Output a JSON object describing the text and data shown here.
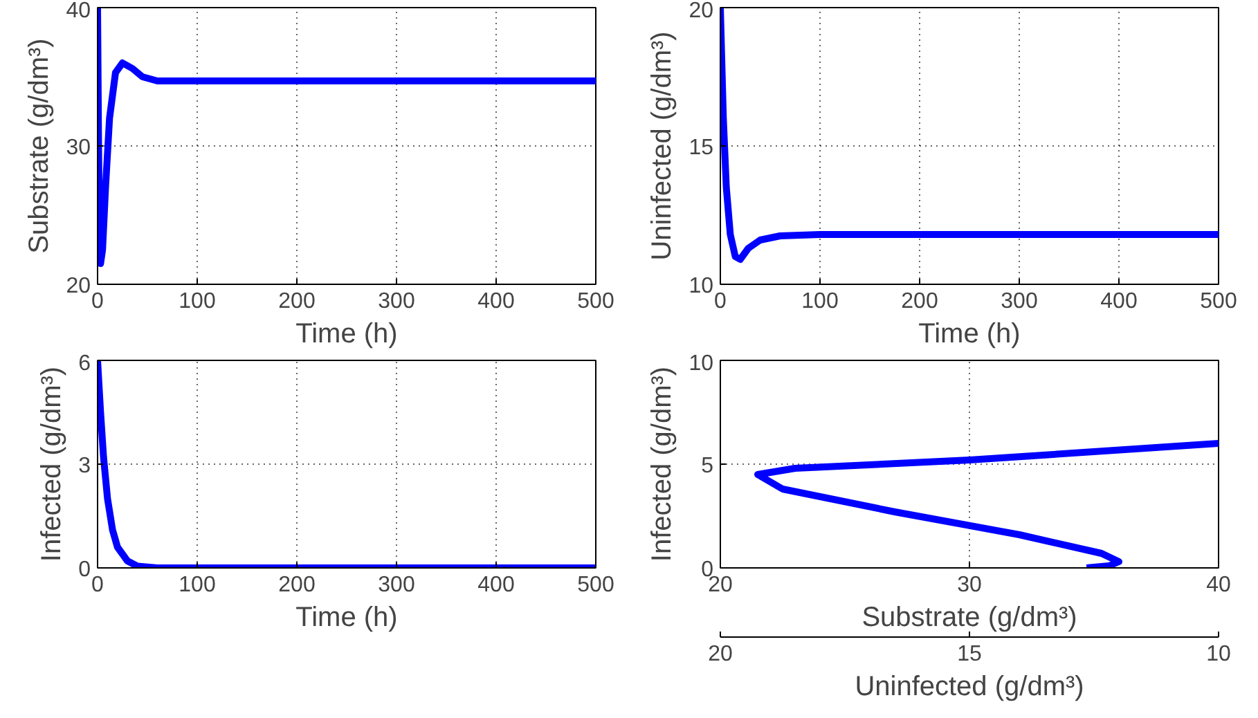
{
  "chart_data": [
    {
      "type": "line",
      "xlabel": "Time (h)",
      "ylabel": "Substrate (g/dm³)",
      "xlim": [
        0,
        500
      ],
      "ylim": [
        20,
        40
      ],
      "xticks": [
        0,
        100,
        200,
        300,
        400,
        500
      ],
      "yticks": [
        20,
        30,
        40
      ],
      "grid": true,
      "marker": "none",
      "line_style": "solid",
      "series": [
        {
          "color": "#0000ff",
          "x": [
            0,
            1,
            2,
            3,
            5,
            8,
            12,
            18,
            25,
            35,
            45,
            60,
            80,
            500
          ],
          "values": [
            40,
            30,
            23,
            21.5,
            22.5,
            27,
            32,
            35.3,
            36,
            35.6,
            35,
            34.7,
            34.7,
            34.7
          ]
        }
      ]
    },
    {
      "type": "line",
      "xlabel": "Time (h)",
      "ylabel": "Uninfected (g/dm³)",
      "xlim": [
        0,
        500
      ],
      "ylim": [
        10,
        20
      ],
      "xticks": [
        0,
        100,
        200,
        300,
        400,
        500
      ],
      "yticks": [
        10,
        15,
        20
      ],
      "grid": true,
      "marker": "none",
      "line_style": "solid",
      "series": [
        {
          "color": "#0000ff",
          "x": [
            0,
            3,
            6,
            10,
            15,
            20,
            28,
            40,
            60,
            100,
            500
          ],
          "values": [
            20,
            16,
            13.5,
            11.8,
            11,
            10.9,
            11.3,
            11.6,
            11.75,
            11.8,
            11.8
          ]
        }
      ]
    },
    {
      "type": "line",
      "xlabel": "Time (h)",
      "ylabel": "Infected (g/dm³)",
      "xlim": [
        0,
        500
      ],
      "ylim": [
        0,
        6
      ],
      "xticks": [
        0,
        100,
        200,
        300,
        400,
        500
      ],
      "yticks": [
        0,
        3,
        6
      ],
      "grid": true,
      "marker": "none",
      "line_style": "solid",
      "series": [
        {
          "color": "#0000ff",
          "x": [
            0,
            3,
            6,
            10,
            15,
            20,
            30,
            40,
            60,
            500
          ],
          "values": [
            6,
            4.5,
            3.2,
            2,
            1.1,
            0.6,
            0.2,
            0.05,
            0,
            0
          ]
        }
      ]
    },
    {
      "type": "line",
      "xlabel": "Substrate (g/dm³)",
      "ylabel": "Infected (g/dm³)",
      "x2label": "Uninfected (g/dm³)",
      "xlim": [
        20,
        40
      ],
      "ylim": [
        0,
        10
      ],
      "x2lim": [
        20,
        10
      ],
      "xticks": [
        20,
        30,
        40
      ],
      "yticks": [
        0,
        5,
        10
      ],
      "x2ticks": [
        20,
        15,
        10
      ],
      "grid": true,
      "marker": "none",
      "line_style": "solid",
      "series": [
        {
          "color": "#0000ff",
          "x": [
            40,
            30,
            23,
            21.5,
            22.5,
            27,
            32,
            35.3,
            36,
            35.6,
            35,
            34.7
          ],
          "values": [
            6,
            5.2,
            4.8,
            4.5,
            3.8,
            2.7,
            1.6,
            0.7,
            0.3,
            0.1,
            0.03,
            0
          ]
        }
      ]
    }
  ]
}
